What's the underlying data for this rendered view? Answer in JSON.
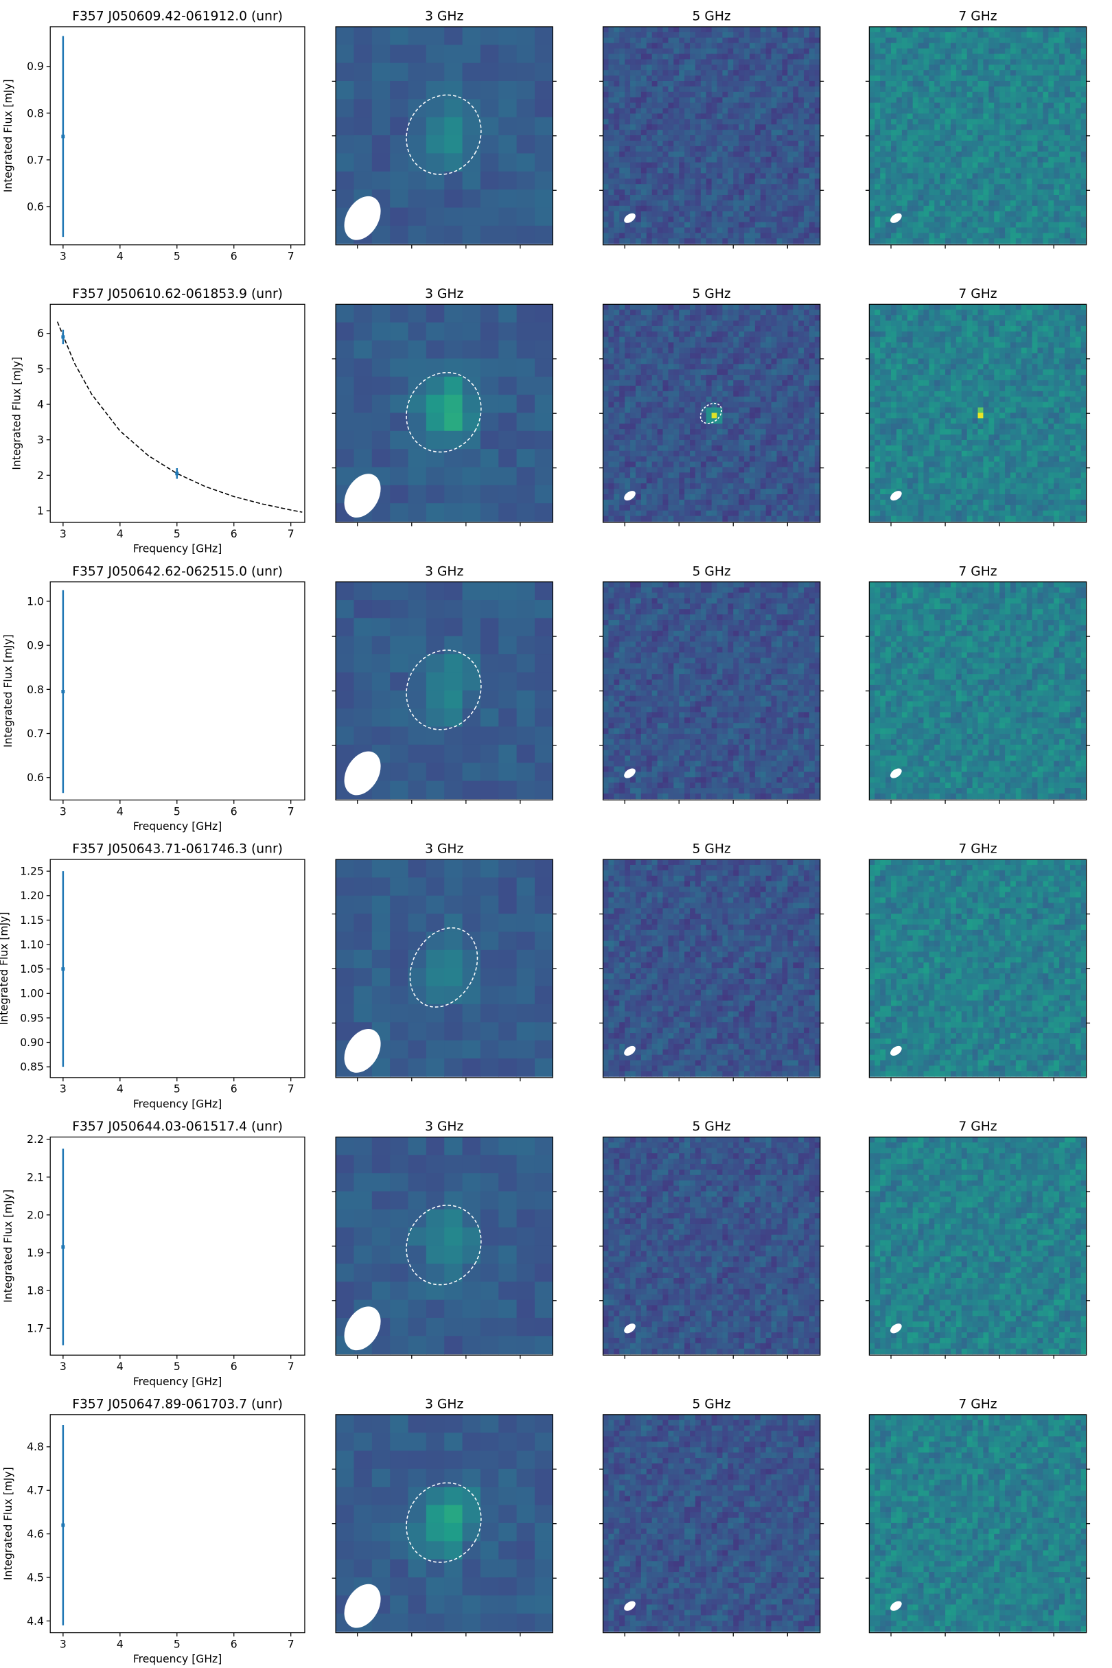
{
  "chart_data": [
    {
      "type": "errorbar",
      "title": "F357 J050609.42-061912.0 (unr)",
      "ylabel": "Integrated Flux [mJy]",
      "x": [
        3
      ],
      "values": [
        0.75
      ],
      "errors": [
        0.215
      ],
      "color": "#1f77b4",
      "xlim": [
        2.775,
        7.244
      ],
      "xticks": [
        3,
        4,
        5,
        6,
        7
      ],
      "ylim": [
        0.518,
        0.985
      ],
      "yticks": [
        0.6,
        0.7,
        0.8,
        0.9
      ]
    },
    {
      "type": "image",
      "title": "3 GHz"
    },
    {
      "type": "image",
      "title": "5 GHz"
    },
    {
      "type": "image",
      "title": "7 GHz"
    },
    {
      "type": "errorbar",
      "title": "F357 J050610.62-061853.9 (unr)",
      "xlabel": "Frequency [GHz]",
      "ylabel": "Integrated Flux [mJy]",
      "x": [
        3,
        5
      ],
      "values": [
        5.9,
        2.05
      ],
      "errors": [
        0.2,
        0.15
      ],
      "color": "#1f77b4",
      "fit": {
        "x": [
          2.9,
          3.2,
          3.5,
          4,
          4.5,
          5,
          5.5,
          6,
          6.5,
          7,
          7.2
        ],
        "values": [
          6.33,
          5.16,
          4.29,
          3.25,
          2.55,
          2.05,
          1.68,
          1.4,
          1.19,
          1.02,
          0.96
        ],
        "color": "#000000"
      },
      "xlim": [
        2.775,
        7.244
      ],
      "xticks": [
        3,
        4,
        5,
        6,
        7
      ],
      "ylim": [
        0.67,
        6.82
      ],
      "yticks": [
        1,
        2,
        3,
        4,
        5,
        6
      ]
    },
    {
      "type": "image",
      "title": "3 GHz"
    },
    {
      "type": "image",
      "title": "5 GHz"
    },
    {
      "type": "image",
      "title": "7 GHz"
    },
    {
      "type": "errorbar",
      "title": "F357 J050642.62-062515.0 (unr)",
      "xlabel": "Frequency [GHz]",
      "ylabel": "Integrated Flux [mJy]",
      "x": [
        3
      ],
      "values": [
        0.795
      ],
      "errors": [
        0.23
      ],
      "color": "#1f77b4",
      "xlim": [
        2.775,
        7.244
      ],
      "xticks": [
        3,
        4,
        5,
        6,
        7
      ],
      "ylim": [
        0.549,
        1.044
      ],
      "yticks": [
        0.6,
        0.7,
        0.8,
        0.9,
        {
          "value": 1.0,
          "label": "1.0"
        }
      ]
    },
    {
      "type": "image",
      "title": "3 GHz"
    },
    {
      "type": "image",
      "title": "5 GHz"
    },
    {
      "type": "image",
      "title": "7 GHz"
    },
    {
      "type": "errorbar",
      "title": "F357 J050643.71-061746.3 (unr)",
      "xlabel": "Frequency [GHz]",
      "ylabel": "Integrated Flux [mJy]",
      "x": [
        3
      ],
      "values": [
        1.05
      ],
      "errors": [
        0.2
      ],
      "color": "#1f77b4",
      "xlim": [
        2.775,
        7.244
      ],
      "xticks": [
        3,
        4,
        5,
        6,
        7
      ],
      "ylim": [
        0.828,
        1.274
      ],
      "yticks": [
        0.85,
        {
          "value": 0.9,
          "label": "0.90"
        },
        0.95,
        {
          "value": 1.0,
          "label": "1.00"
        },
        1.05,
        {
          "value": 1.1,
          "label": "1.10"
        },
        1.15,
        {
          "value": 1.2,
          "label": "1.20"
        },
        1.25
      ]
    },
    {
      "type": "image",
      "title": "3 GHz"
    },
    {
      "type": "image",
      "title": "5 GHz"
    },
    {
      "type": "image",
      "title": "7 GHz"
    },
    {
      "type": "errorbar",
      "title": "F357 J050644.03-061517.4 (unr)",
      "xlabel": "Frequency [GHz]",
      "ylabel": "Integrated Flux [mJy]",
      "x": [
        3
      ],
      "values": [
        1.915
      ],
      "errors": [
        0.26
      ],
      "color": "#1f77b4",
      "xlim": [
        2.775,
        7.244
      ],
      "xticks": [
        3,
        4,
        5,
        6,
        7
      ],
      "ylim": [
        1.629,
        2.206
      ],
      "yticks": [
        1.7,
        1.8,
        1.9,
        {
          "value": 2.0,
          "label": "2.0"
        },
        2.1,
        2.2
      ]
    },
    {
      "type": "image",
      "title": "3 GHz"
    },
    {
      "type": "image",
      "title": "5 GHz"
    },
    {
      "type": "image",
      "title": "7 GHz"
    },
    {
      "type": "errorbar",
      "title": "F357 J050647.89-061703.7 (unr)",
      "xlabel": "Frequency [GHz]",
      "ylabel": "Integrated Flux [mJy]",
      "x": [
        3
      ],
      "values": [
        4.62
      ],
      "errors": [
        0.23
      ],
      "color": "#1f77b4",
      "xlim": [
        2.775,
        7.244
      ],
      "xticks": [
        3,
        4,
        5,
        6,
        7
      ],
      "ylim": [
        4.373,
        4.874
      ],
      "yticks": [
        4.4,
        4.5,
        4.6,
        4.7,
        4.8
      ]
    },
    {
      "type": "image",
      "title": "3 GHz"
    },
    {
      "type": "image",
      "title": "5 GHz"
    },
    {
      "type": "image",
      "title": "7 GHz"
    }
  ]
}
